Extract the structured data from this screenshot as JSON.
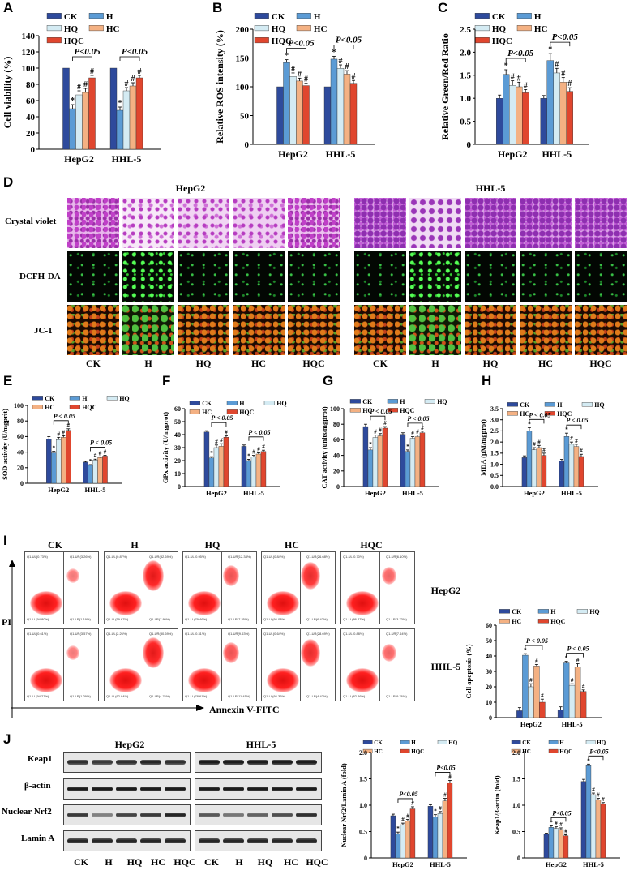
{
  "panels": {
    "A": "A",
    "B": "B",
    "C": "C",
    "D": "D",
    "E": "E",
    "F": "F",
    "G": "G",
    "H": "H",
    "I": "I",
    "J": "J"
  },
  "colors": {
    "CK": "#2e4a9c",
    "H": "#5b9bd5",
    "HQ": "#d4ebf3",
    "HC": "#f4b183",
    "HQC": "#e0462e"
  },
  "groups": [
    "CK",
    "H",
    "HQ",
    "HC",
    "HQC"
  ],
  "cells": [
    "HepG2",
    "HHL-5"
  ],
  "sig": "P<0.05",
  "sig_spaced": "P < 0.05",
  "star": "*",
  "hash": "#",
  "panelD": {
    "hepg2": "HepG2",
    "hhl5": "HHL-5",
    "rows": [
      "Crystal violet",
      "DCFH-DA",
      "JC-1"
    ],
    "cols": [
      "CK",
      "H",
      "HQ",
      "HC",
      "HQC",
      "CK",
      "H",
      "HQ",
      "HC",
      "HQC"
    ]
  },
  "panelI": {
    "cols": [
      "CK",
      "H",
      "HQ",
      "HC",
      "HQC"
    ],
    "rows": [
      "HepG2",
      "HHL-5"
    ],
    "yaxis": "PI",
    "xaxis": "Annexin V-FITC",
    "quad_hep": [
      [
        "Q1-UL(0.73%)",
        "Q1-UR(3.26%)",
        "Q1-LL(94.80%)",
        "Q1-LR(1.19%)"
      ],
      [
        "Q1-UL(0.87%)",
        "Q1-UR(32.69%)",
        "Q1-LL(59.67%)",
        "Q1-LR(7.80%)"
      ],
      [
        "Q1-UL(0.95%)",
        "Q1-UR(12.34%)",
        "Q1-LL(79.46%)",
        "Q1-LR(7.25%)"
      ],
      [
        "Q1-UL(0.84%)",
        "Q1-UR(26.68%)",
        "Q1-LL(66.08%)",
        "Q1-LR(6.42%)"
      ],
      [
        "Q1-UL(0.70%)",
        "Q1-UR(6.10%)",
        "Q1-LL(86.47%)",
        "Q1-LR(3.73%)"
      ]
    ],
    "quad_hhl": [
      [
        "Q1-UL(0.61%)",
        "Q1-UR(3.57%)",
        "Q1-LL(94.27%)",
        "Q1-LR(1.29%)"
      ],
      [
        "Q1-UL(2.26%)",
        "Q1-UR(30.69%)",
        "Q1-LL(62.84%)",
        "Q1-LR(4.76%)"
      ],
      [
        "Q1-UL(0.31%)",
        "Q1-UR(9.63%)",
        "Q1-LL(78.61%)",
        "Q1-LR(11.45%)"
      ],
      [
        "Q1-UL(0.64%)",
        "Q1-UR(28.69%)",
        "Q1-LL(66.36%)",
        "Q1-LR(4.42%)"
      ],
      [
        "Q1-UL(0.88%)",
        "Q1-UR(7.64%)",
        "Q1-LL(82.46%)",
        "Q1-LR(9.76%)"
      ]
    ]
  },
  "panelJ": {
    "hepg2": "HepG2",
    "hhl5": "HHL-5",
    "rows": [
      "Keap1",
      "β-actin",
      "Nuclear Nrf2",
      "Lamin A"
    ],
    "cols": [
      "CK",
      "H",
      "HQ",
      "HC",
      "HQC",
      "CK",
      "H",
      "HQ",
      "HC",
      "HQC"
    ]
  },
  "chart_data": [
    {
      "id": "A",
      "type": "bar",
      "ylabel": "Cell viability (%)",
      "ylim": [
        0,
        140
      ],
      "yticks": [
        0,
        20,
        40,
        60,
        80,
        100,
        120,
        140
      ],
      "categories": [
        "HepG2",
        "HHL-5"
      ],
      "series": [
        {
          "name": "CK",
          "values": [
            100,
            100
          ]
        },
        {
          "name": "H",
          "values": [
            50,
            48
          ]
        },
        {
          "name": "HQ",
          "values": [
            67,
            72
          ]
        },
        {
          "name": "HC",
          "values": [
            70,
            78
          ]
        },
        {
          "name": "HQC",
          "values": [
            88,
            88
          ]
        }
      ],
      "errors": [
        [
          0,
          0
        ],
        [
          5,
          4
        ],
        [
          5,
          4
        ],
        [
          5,
          4
        ],
        [
          3,
          3
        ]
      ],
      "marks": [
        [
          "",
          "",
          "",
          ""
        ],
        [
          "*",
          "#",
          "#",
          "#"
        ],
        [
          "*",
          "#",
          "#",
          "#"
        ]
      ]
    },
    {
      "id": "B",
      "type": "bar",
      "ylabel": "Relative ROS  intensity (%)",
      "ylim": [
        0,
        200
      ],
      "yticks": [
        0,
        50,
        100,
        150,
        200
      ],
      "categories": [
        "HepG2",
        "HHL-5"
      ],
      "series": [
        {
          "name": "CK",
          "values": [
            100,
            100
          ]
        },
        {
          "name": "H",
          "values": [
            142,
            148
          ]
        },
        {
          "name": "HQ",
          "values": [
            118,
            132
          ]
        },
        {
          "name": "HC",
          "values": [
            110,
            122
          ]
        },
        {
          "name": "HQC",
          "values": [
            102,
            106
          ]
        }
      ],
      "errors": [
        [
          0,
          0
        ],
        [
          5,
          5
        ],
        [
          6,
          6
        ],
        [
          5,
          6
        ],
        [
          4,
          5
        ]
      ]
    },
    {
      "id": "C",
      "type": "bar",
      "ylabel": "Relative Green/Red Ratio",
      "ylim": [
        0,
        2.5
      ],
      "yticks": [
        0,
        0.5,
        1.0,
        1.5,
        2.0,
        2.5
      ],
      "categories": [
        "HepG2",
        "HHL-5"
      ],
      "series": [
        {
          "name": "CK",
          "values": [
            1.0,
            1.0
          ]
        },
        {
          "name": "H",
          "values": [
            1.52,
            1.82
          ]
        },
        {
          "name": "HQ",
          "values": [
            1.28,
            1.55
          ]
        },
        {
          "name": "HC",
          "values": [
            1.25,
            1.35
          ]
        },
        {
          "name": "HQC",
          "values": [
            1.12,
            1.15
          ]
        }
      ],
      "errors": [
        [
          0.07,
          0.06
        ],
        [
          0.1,
          0.15
        ],
        [
          0.1,
          0.1
        ],
        [
          0.1,
          0.1
        ],
        [
          0.07,
          0.08
        ]
      ]
    },
    {
      "id": "E",
      "type": "bar",
      "ylabel": "SOD activity (U/mgprit)",
      "ylim": [
        0,
        100
      ],
      "yticks": [
        0,
        20,
        40,
        60,
        80,
        100
      ],
      "categories": [
        "HepG2",
        "HHL-5"
      ],
      "series": [
        {
          "name": "CK",
          "values": [
            57,
            27
          ]
        },
        {
          "name": "H",
          "values": [
            39,
            23
          ]
        },
        {
          "name": "HQ",
          "values": [
            56,
            30
          ]
        },
        {
          "name": "HC",
          "values": [
            59,
            33
          ]
        },
        {
          "name": "HQC",
          "values": [
            68,
            35
          ]
        }
      ],
      "errors": [
        [
          3,
          1
        ],
        [
          2,
          1
        ],
        [
          3,
          1
        ],
        [
          2,
          1
        ],
        [
          2,
          1
        ]
      ]
    },
    {
      "id": "F",
      "type": "bar",
      "ylabel": "GPx activity (U/mgprot)",
      "ylim": [
        0,
        60
      ],
      "yticks": [
        0,
        10,
        20,
        30,
        40,
        50,
        60
      ],
      "categories": [
        "HepG2",
        "HHL-5"
      ],
      "series": [
        {
          "name": "CK",
          "values": [
            42,
            31
          ]
        },
        {
          "name": "H",
          "values": [
            22,
            20
          ]
        },
        {
          "name": "HQ",
          "values": [
            30,
            23
          ]
        },
        {
          "name": "HC",
          "values": [
            31,
            25
          ]
        },
        {
          "name": "HQC",
          "values": [
            38,
            27
          ]
        }
      ],
      "errors": [
        [
          1,
          1
        ],
        [
          1,
          1
        ],
        [
          2,
          1
        ],
        [
          2,
          1
        ],
        [
          1,
          1
        ]
      ]
    },
    {
      "id": "G",
      "type": "bar",
      "ylabel": "CAT activity (units/mgprot)",
      "ylim": [
        0,
        100
      ],
      "yticks": [
        0,
        20,
        40,
        60,
        80,
        100
      ],
      "categories": [
        "HepG2",
        "HHL-5"
      ],
      "series": [
        {
          "name": "CK",
          "values": [
            77,
            67
          ]
        },
        {
          "name": "H",
          "values": [
            47,
            45
          ]
        },
        {
          "name": "HQ",
          "values": [
            63,
            62
          ]
        },
        {
          "name": "HC",
          "values": [
            65,
            64
          ]
        },
        {
          "name": "HQC",
          "values": [
            75,
            69
          ]
        }
      ],
      "errors": [
        [
          3,
          2
        ],
        [
          3,
          2
        ],
        [
          3,
          2
        ],
        [
          3,
          2
        ],
        [
          2,
          2
        ]
      ]
    },
    {
      "id": "H",
      "type": "bar",
      "ylabel": "MDA (μM/mgprot)",
      "ylim": [
        0,
        3.5
      ],
      "yticks": [
        0,
        0.5,
        1.0,
        1.5,
        2.0,
        2.5,
        3.0,
        3.5
      ],
      "categories": [
        "HepG2",
        "HHL-5"
      ],
      "series": [
        {
          "name": "CK",
          "values": [
            1.3,
            1.15
          ]
        },
        {
          "name": "H",
          "values": [
            2.5,
            2.25
          ]
        },
        {
          "name": "HQ",
          "values": [
            1.65,
            1.9
          ]
        },
        {
          "name": "HC",
          "values": [
            1.75,
            1.8
          ]
        },
        {
          "name": "HQC",
          "values": [
            1.4,
            1.35
          ]
        }
      ],
      "errors": [
        [
          0.08,
          0.07
        ],
        [
          0.15,
          0.15
        ],
        [
          0.1,
          0.1
        ],
        [
          0.1,
          0.1
        ],
        [
          0.1,
          0.1
        ]
      ]
    },
    {
      "id": "I",
      "type": "bar",
      "ylabel": "Cell apoptosis (%)",
      "ylim": [
        0,
        60
      ],
      "yticks": [
        0,
        10,
        20,
        30,
        40,
        50,
        60
      ],
      "categories": [
        "HepG2",
        "HHL-5"
      ],
      "series": [
        {
          "name": "CK",
          "values": [
            4.5,
            5
          ]
        },
        {
          "name": "H",
          "values": [
            40.5,
            35.5
          ]
        },
        {
          "name": "HQ",
          "values": [
            20,
            21
          ]
        },
        {
          "name": "HC",
          "values": [
            33.5,
            33
          ]
        },
        {
          "name": "HQC",
          "values": [
            10,
            17
          ]
        }
      ],
      "errors": [
        [
          2,
          2
        ],
        [
          1,
          1
        ],
        [
          2,
          1
        ],
        [
          1,
          2
        ],
        [
          2,
          1
        ]
      ]
    },
    {
      "id": "J1",
      "type": "bar",
      "ylabel": "Nuclear Nrf2/Lamin A (fold)",
      "ylim": [
        0,
        2.0
      ],
      "yticks": [
        0,
        0.5,
        1.0,
        1.5,
        2.0
      ],
      "categories": [
        "HepG2",
        "HHL-5"
      ],
      "series": [
        {
          "name": "CK",
          "values": [
            0.8,
            0.98
          ]
        },
        {
          "name": "H",
          "values": [
            0.46,
            0.78
          ]
        },
        {
          "name": "HQ",
          "values": [
            0.63,
            0.84
          ]
        },
        {
          "name": "HC",
          "values": [
            0.7,
            1.08
          ]
        },
        {
          "name": "HQC",
          "values": [
            0.93,
            1.42
          ]
        }
      ],
      "errors": [
        [
          0.03,
          0.03
        ],
        [
          0.03,
          0.04
        ],
        [
          0.03,
          0.04
        ],
        [
          0.03,
          0.05
        ],
        [
          0.04,
          0.05
        ]
      ]
    },
    {
      "id": "J2",
      "type": "bar",
      "ylabel": "Keap1/β-actin (fold)",
      "ylim": [
        0,
        2.0
      ],
      "yticks": [
        0,
        0.5,
        1.0,
        1.5,
        2.0
      ],
      "categories": [
        "HepG2",
        "HHL-5"
      ],
      "series": [
        {
          "name": "CK",
          "values": [
            0.45,
            1.45
          ]
        },
        {
          "name": "H",
          "values": [
            0.58,
            1.75
          ]
        },
        {
          "name": "HQ",
          "values": [
            0.56,
            1.2
          ]
        },
        {
          "name": "HC",
          "values": [
            0.54,
            1.1
          ]
        },
        {
          "name": "HQC",
          "values": [
            0.42,
            1.02
          ]
        }
      ],
      "errors": [
        [
          0.02,
          0.04
        ],
        [
          0.03,
          0.03
        ],
        [
          0.03,
          0.03
        ],
        [
          0.03,
          0.03
        ],
        [
          0.02,
          0.03
        ]
      ]
    }
  ]
}
